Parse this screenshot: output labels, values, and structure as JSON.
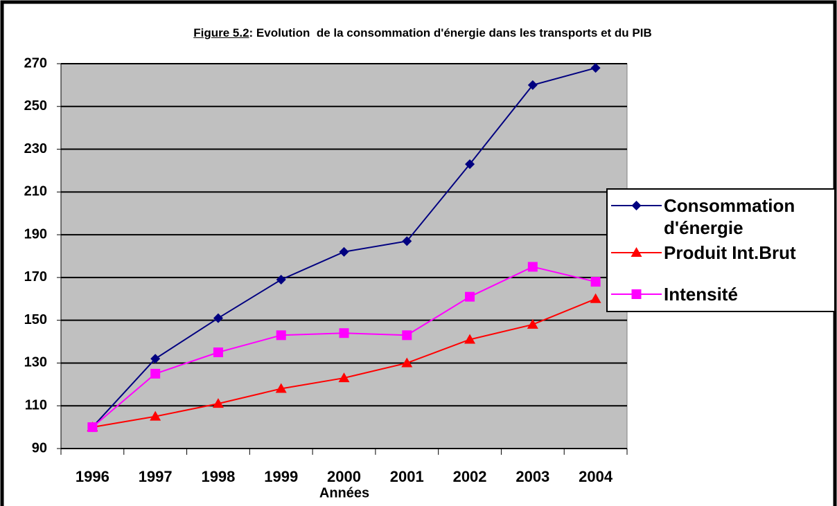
{
  "chart_data": {
    "type": "line",
    "figure_label": "Figure 5.2",
    "title": ": Evolution  de la consommation d'énergie dans les transports et du PIB",
    "x_label": "Années",
    "categories": [
      "1996",
      "1997",
      "1998",
      "1999",
      "2000",
      "2001",
      "2002",
      "2003",
      "2004"
    ],
    "series": [
      {
        "name": "Consommation d'énergie",
        "color": "#000080",
        "marker": "diamond",
        "values": [
          100,
          132,
          151,
          169,
          182,
          187,
          223,
          260,
          268
        ]
      },
      {
        "name": "Produit Int.Brut",
        "color": "#ff0000",
        "marker": "triangle",
        "values": [
          100,
          105,
          111,
          118,
          123,
          130,
          141,
          148,
          160
        ]
      },
      {
        "name": "Intensité",
        "color": "#ff00ff",
        "marker": "square",
        "values": [
          100,
          125,
          135,
          143,
          144,
          143,
          161,
          175,
          168
        ]
      }
    ],
    "ylim": [
      90,
      270
    ],
    "yticks": [
      90,
      110,
      130,
      150,
      170,
      190,
      210,
      230,
      250,
      270
    ],
    "grid": true,
    "legend": "right",
    "plot_background": "#c0c0c0"
  }
}
